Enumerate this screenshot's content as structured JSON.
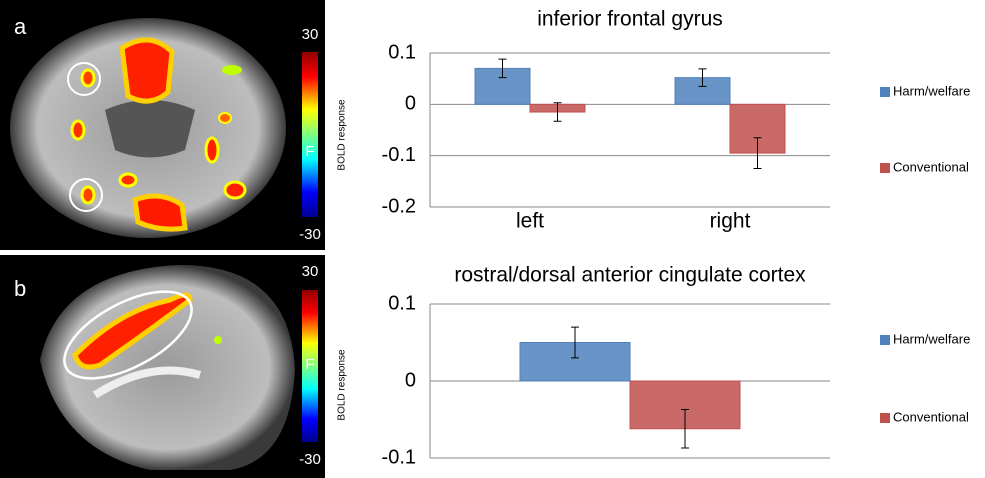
{
  "panels": [
    {
      "letter": "a",
      "scale_max": "30",
      "scale_min": "-30",
      "scale_symbol": "F",
      "scale_title": "BOLD response"
    },
    {
      "letter": "b",
      "scale_max": "30",
      "scale_min": "-30",
      "scale_symbol": "F",
      "scale_title": "BOLD response"
    }
  ],
  "chart_data": [
    {
      "type": "bar",
      "title": "inferior frontal gyrus",
      "categories": [
        "left",
        "right"
      ],
      "series": [
        {
          "name": "Harm/welfare",
          "color": "#4f81bd",
          "values": [
            0.07,
            0.052
          ],
          "errors": [
            0.018,
            0.017
          ]
        },
        {
          "name": "Conventional",
          "color": "#c0504d",
          "values": [
            -0.015,
            -0.095
          ],
          "errors": [
            0.018,
            0.03
          ]
        }
      ],
      "ylim": [
        -0.2,
        0.1
      ],
      "yticks": [
        -0.2,
        -0.1,
        0,
        0.1
      ],
      "grid": true,
      "legend": "right"
    },
    {
      "type": "bar",
      "title": "rostral/dorsal anterior cingulate cortex",
      "categories": [
        null
      ],
      "series": [
        {
          "name": "Harm/welfare",
          "color": "#4f81bd",
          "values": [
            0.05
          ],
          "errors": [
            0.02
          ]
        },
        {
          "name": "Conventional",
          "color": "#c0504d",
          "values": [
            -0.062
          ],
          "errors": [
            0.025
          ]
        }
      ],
      "ylim": [
        -0.1,
        0.1
      ],
      "yticks": [
        -0.1,
        0,
        0.1
      ],
      "grid": true,
      "legend": "right"
    }
  ]
}
